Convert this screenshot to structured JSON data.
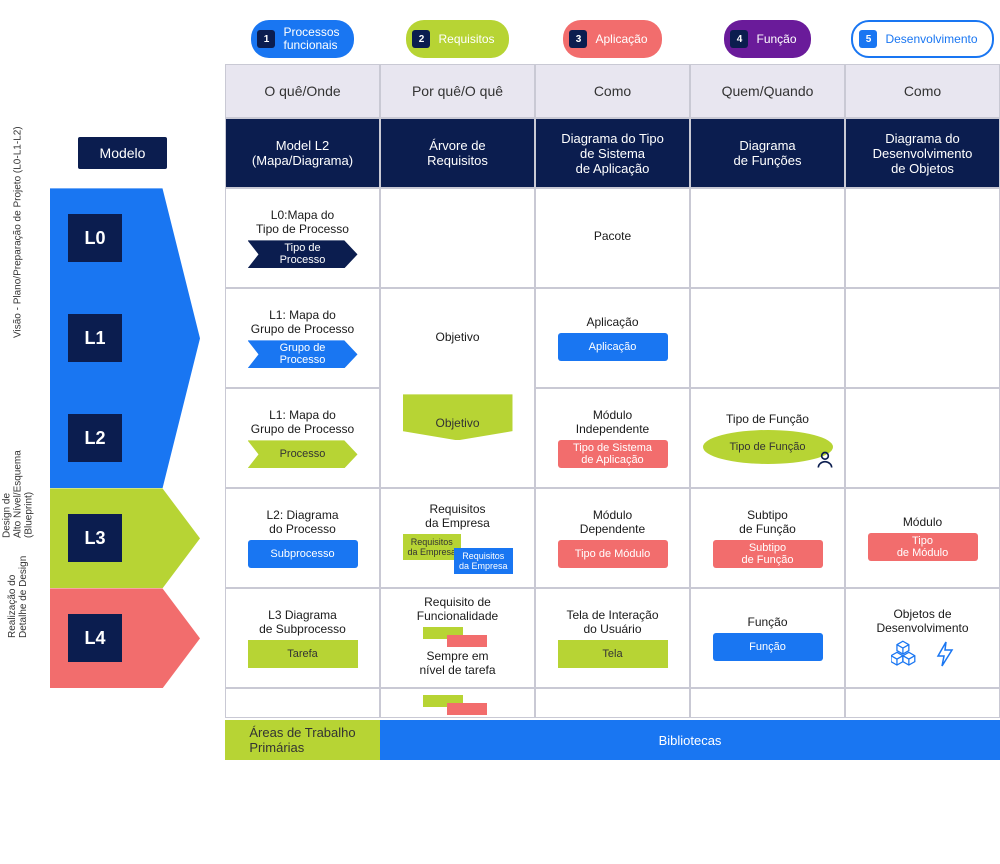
{
  "colors": {
    "blue": "#1976f2",
    "lime": "#b7d434",
    "coral": "#f26d6d",
    "purple": "#6a1b9a",
    "navy": "#0b1d4f",
    "hdr_lavender": "#e8e6f0",
    "border": "#c9c9d4",
    "white": "#ffffff",
    "text": "#333333"
  },
  "top_pills": [
    {
      "num": "1",
      "label": "Processos\nfuncionais",
      "bg": "#1976f2"
    },
    {
      "num": "2",
      "label": "Requisitos",
      "bg": "#b7d434"
    },
    {
      "num": "3",
      "label": "Aplicação",
      "bg": "#f26d6d"
    },
    {
      "num": "4",
      "label": "Função",
      "bg": "#6a1b9a"
    },
    {
      "num": "5",
      "label": "Desenvolvimento",
      "outline": true
    }
  ],
  "col_headers_1": [
    "O quê/Onde",
    "Por quê/O quê",
    "Como",
    "Quem/Quando",
    "Como"
  ],
  "col_headers_2": [
    "Model L2\n(Mapa/Diagrama)",
    "Árvore de\nRequisitos",
    "Diagrama do Tipo\nde Sistema\nde Aplicação",
    "Diagrama\nde Funções",
    "Diagrama do\nDesenvolvimento\nde Objetos"
  ],
  "modelo_label": "Modelo",
  "side_labels": {
    "vision": "Visão - Plano/Preparação de Projeto (L0-L1-L2)",
    "design": "Design de\nAlto Nível/Esquema\n(Blueprint)",
    "realize": "Realização do\nDetalhe de Design"
  },
  "levels": [
    "L0",
    "L1",
    "L2",
    "L3",
    "L4"
  ],
  "rows": {
    "L0": {
      "arrow_color": "#1976f2",
      "c1": {
        "title": "L0:Mapa do\nTipo de Processo",
        "chev_label": "Tipo de\nProcesso",
        "chev_bg": "#0b1d4f"
      },
      "c3": {
        "title": "Pacote"
      }
    },
    "L1": {
      "arrow_color": "#1976f2",
      "c1": {
        "title": "L1: Mapa do\nGrupo de Processo",
        "chev_label": "Grupo de\nProcesso",
        "chev_bg": "#1976f2"
      },
      "c2": {
        "title": "Objetivo"
      },
      "c3": {
        "title": "Aplicação",
        "tag_label": "Aplicação",
        "tag_bg": "#1976f2"
      }
    },
    "L2": {
      "arrow_color": "#1976f2",
      "c1": {
        "title": "L1: Mapa do\nGrupo de Processo",
        "chev_label": "Processo",
        "chev_bg": "#b7d434",
        "chev_fg": "#333333"
      },
      "c2": {
        "banner_label": "Objetivo",
        "banner_bg": "#b7d434"
      },
      "c3": {
        "title": "Módulo\nIndependente",
        "tag_label": "Tipo de Sistema\nde Aplicação",
        "tag_bg": "#f26d6d"
      },
      "c4": {
        "title": "Tipo de Função",
        "ellipse_label": "Tipo de Função",
        "ellipse_bg": "#b7d434"
      }
    },
    "L3": {
      "arrow_color": "#b7d434",
      "c1": {
        "title": "L2: Diagrama\ndo Processo",
        "tag_label": "Subprocesso",
        "tag_bg": "#1976f2"
      },
      "c2": {
        "title": "Requisitos\nda Empresa",
        "mini1": "Requisitos\nda Empresa",
        "mini1_bg": "#b7d434",
        "mini2": "Requisitos\nda Empresa",
        "mini2_bg": "#1976f2"
      },
      "c3": {
        "title": "Módulo\nDependente",
        "tag_label": "Tipo de Módulo",
        "tag_bg": "#f26d6d"
      },
      "c4": {
        "title": "Subtipo\nde Função",
        "tag_label": "Subtipo\nde Função",
        "tag_bg": "#f26d6d"
      },
      "c5": {
        "title": "Módulo",
        "tag_label": "Tipo\nde Módulo",
        "tag_bg": "#f26d6d"
      }
    },
    "L4": {
      "arrow_color": "#f26d6d",
      "c1": {
        "title": "L3 Diagrama\nde Subprocesso",
        "tag_label": "Tarefa",
        "tag_bg": "#b7d434",
        "tag_fg": "#333333"
      },
      "c2": {
        "title": "Requisito de\nFuncionalidade",
        "sub": "Sempre em\nnível de tarefa",
        "mini1_bg": "#b7d434",
        "mini2_bg": "#f26d6d"
      },
      "c3": {
        "title": "Tela de Interação\ndo Usuário",
        "tag_label": "Tela",
        "tag_bg": "#b7d434",
        "tag_fg": "#333333"
      },
      "c4": {
        "title": "Função",
        "tag_label": "Função",
        "tag_bg": "#1976f2"
      },
      "c5": {
        "title": "Objetos de\nDesenvolvimento"
      }
    }
  },
  "footer": {
    "left": "Áreas de Trabalho\nPrimárias",
    "left_bg": "#b7d434",
    "left_fg": "#333333",
    "right": "Bibliotecas",
    "right_bg": "#1976f2"
  }
}
